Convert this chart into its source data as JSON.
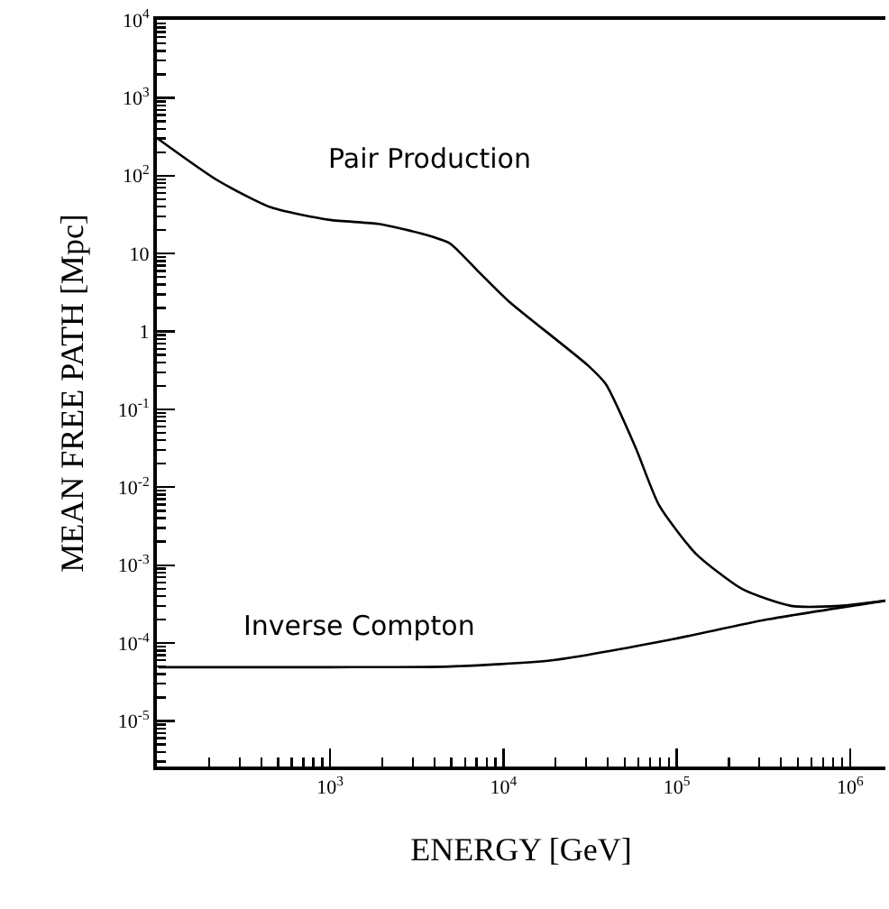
{
  "chart_data": {
    "type": "line",
    "xlabel": "ENERGY [GeV]",
    "ylabel": "MEAN FREE PATH [Mpc]",
    "log": "xy",
    "grid": false,
    "marker": "none",
    "line_style": "solid",
    "xlim": [
      100,
      1600000
    ],
    "ylim": [
      2.6e-06,
      10000
    ],
    "xticks": [
      {
        "value": 1000,
        "label": "10$^{3}$"
      },
      {
        "value": 10000,
        "label": "10$^{4}$"
      },
      {
        "value": 100000,
        "label": "10$^{5}$"
      },
      {
        "value": 1000000,
        "label": "10$^{6}$"
      }
    ],
    "yticks": [
      {
        "value": 10000,
        "label": "10$^{4}$"
      },
      {
        "value": 1000,
        "label": "10$^{3}$"
      },
      {
        "value": 100,
        "label": "10$^{2}$"
      },
      10,
      1,
      {
        "value": 0.1,
        "label": "10$^{-1}$"
      },
      {
        "value": 0.01,
        "label": "10$^{-2}$"
      },
      {
        "value": 0.001,
        "label": "10$^{-3}$"
      },
      {
        "value": 0.0001,
        "label": "10$^{-4}$"
      },
      {
        "value": 1e-05,
        "label": "10$^{-5}$"
      }
    ],
    "series": [
      {
        "name": "Pair Production",
        "color": "#000000",
        "x": [
          102,
          224,
          457,
          1000,
          1900,
          3500,
          4900,
          7100,
          10700,
          31000,
          39000,
          58000,
          79000,
          129000,
          240000,
          457000,
          870000,
          1600000
        ],
        "values": [
          295,
          87,
          39,
          27,
          24,
          17.6,
          13.5,
          6.0,
          2.45,
          0.36,
          0.21,
          0.032,
          0.0059,
          0.0014,
          0.00049,
          0.0003,
          0.0003,
          0.00035
        ]
      },
      {
        "name": "Inverse Compton",
        "color": "#000000",
        "x": [
          102,
          1000,
          4900,
          19000,
          91000,
          330000,
          1600000
        ],
        "values": [
          4.9e-05,
          4.9e-05,
          5e-05,
          6e-05,
          0.00011,
          0.0002,
          0.00035
        ]
      }
    ]
  }
}
